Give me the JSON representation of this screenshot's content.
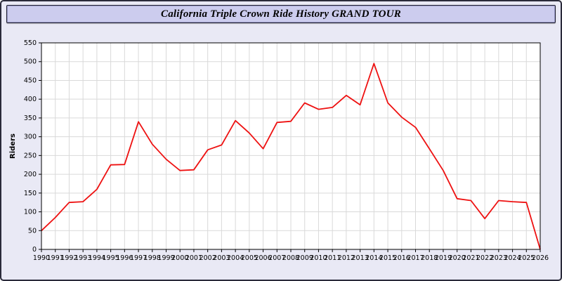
{
  "header": {
    "title": "California Triple Crown Ride History GRAND TOUR"
  },
  "colors": {
    "line": "#ee1111",
    "title_bar_bg": "#ccccee",
    "page_bg": "#e9e9f5",
    "plot_bg": "#ffffff",
    "grid": "#d9d9d9",
    "axis": "#000000"
  },
  "chart_data": {
    "type": "line",
    "title": "California Triple Crown Ride History GRAND TOUR",
    "xlabel": "",
    "ylabel": "Riders",
    "ylim": [
      0,
      550
    ],
    "ytick_step": 50,
    "yticks": [
      0,
      50,
      100,
      150,
      200,
      250,
      300,
      350,
      400,
      450,
      500,
      550
    ],
    "grid": true,
    "legend_position": "none",
    "x": [
      1990,
      1991,
      1992,
      1993,
      1994,
      1995,
      1996,
      1997,
      1998,
      1999,
      2000,
      2001,
      2002,
      2003,
      2004,
      2005,
      2006,
      2007,
      2008,
      2009,
      2010,
      2011,
      2012,
      2013,
      2014,
      2015,
      2016,
      2017,
      2018,
      2019,
      2020,
      2021,
      2022,
      2023,
      2024,
      2025,
      2026
    ],
    "series": [
      {
        "name": "Riders",
        "values": [
          50,
          85,
          125,
          127,
          160,
          225,
          226,
          340,
          280,
          240,
          210,
          212,
          265,
          278,
          343,
          310,
          268,
          338,
          341,
          390,
          373,
          378,
          410,
          385,
          495,
          390,
          352,
          325,
          268,
          210,
          135,
          130,
          82,
          130,
          127,
          125,
          0
        ]
      }
    ]
  }
}
